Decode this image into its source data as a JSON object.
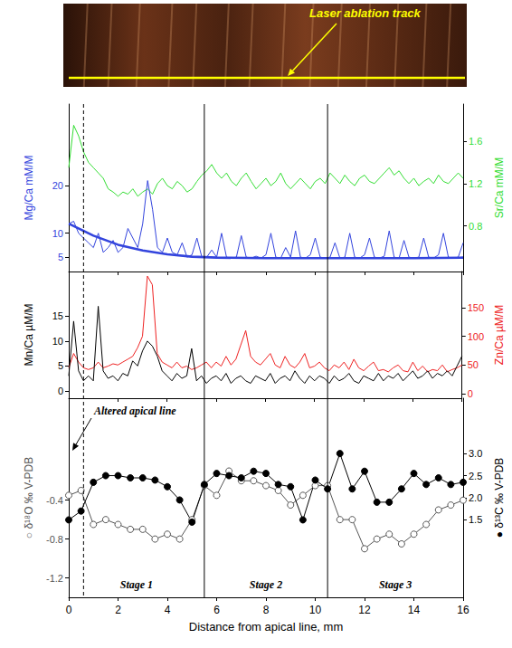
{
  "chart_data": {
    "type": "line",
    "photo_label": "Laser ablation track",
    "x_label": "Distance from apical line, mm",
    "xlim": [
      0,
      16
    ],
    "xticks": [
      0,
      2,
      4,
      6,
      8,
      10,
      12,
      14,
      16
    ],
    "grid": false,
    "stage_boundaries": [
      5.5,
      10.5
    ],
    "stage_labels": [
      "Stage 1",
      "Stage 2",
      "Stage 3"
    ],
    "altered_apical_line": 0.6,
    "annotation": "Altered apical line",
    "panels": [
      {
        "y_label": "Mg/Ca mM/M",
        "ylim": [
          2,
          37
        ],
        "yticks": [
          5,
          10,
          20
        ],
        "y2_label": "Sr/Ca mM/M",
        "y2lim": [
          0.37,
          1.95
        ],
        "y2ticks": [
          0.8,
          1.2,
          1.6
        ],
        "x": [
          0,
          0.2,
          0.4,
          0.6,
          0.8,
          1,
          1.2,
          1.4,
          1.6,
          1.8,
          2,
          2.2,
          2.4,
          2.6,
          2.8,
          3,
          3.2,
          3.4,
          3.6,
          3.8,
          4,
          4.2,
          4.4,
          4.6,
          4.8,
          5,
          5.2,
          5.4,
          5.6,
          5.8,
          6,
          6.2,
          6.4,
          6.6,
          6.8,
          7,
          7.2,
          7.4,
          7.6,
          7.8,
          8,
          8.2,
          8.4,
          8.6,
          8.8,
          9,
          9.2,
          9.4,
          9.6,
          9.8,
          10,
          10.2,
          10.4,
          10.6,
          10.8,
          11,
          11.2,
          11.4,
          11.6,
          11.8,
          12,
          12.2,
          12.4,
          12.6,
          12.8,
          13,
          13.2,
          13.4,
          13.6,
          13.8,
          14,
          14.2,
          14.4,
          14.6,
          14.8,
          15,
          15.2,
          15.4,
          15.6,
          15.8,
          16
        ],
        "series": [
          {
            "color": "#33dd33",
            "axis": "y2",
            "marker": "none",
            "line_style": "solid",
            "values": [
              1.35,
              1.75,
              1.65,
              1.5,
              1.4,
              1.35,
              1.3,
              1.25,
              1.15,
              1.12,
              1.08,
              1.12,
              1.1,
              1.15,
              1.08,
              1.12,
              1.15,
              1.1,
              1.2,
              1.25,
              1.18,
              1.15,
              1.22,
              1.18,
              1.12,
              1.15,
              1.22,
              1.28,
              1.32,
              1.38,
              1.3,
              1.25,
              1.3,
              1.22,
              1.18,
              1.25,
              1.3,
              1.22,
              1.15,
              1.2,
              1.25,
              1.18,
              1.22,
              1.3,
              1.2,
              1.15,
              1.2,
              1.25,
              1.2,
              1.15,
              1.22,
              1.25,
              1.2,
              1.3,
              1.25,
              1.2,
              1.28,
              1.22,
              1.18,
              1.25,
              1.28,
              1.22,
              1.2,
              1.25,
              1.3,
              1.35,
              1.28,
              1.32,
              1.25,
              1.2,
              1.25,
              1.18,
              1.22,
              1.25,
              1.2,
              1.28,
              1.22,
              1.2,
              1.25,
              1.3,
              1.25
            ]
          },
          {
            "color": "#3344dd",
            "axis": "y",
            "marker": "none",
            "line_style": "solid",
            "values": [
              12,
              12.5,
              10,
              9,
              8,
              7,
              10,
              6,
              7,
              8.5,
              6,
              7,
              11,
              9,
              7,
              12,
              21,
              15,
              7,
              6,
              9,
              6,
              5.5,
              8,
              5,
              5.5,
              9,
              5,
              5,
              6.5,
              5,
              10,
              5,
              4.8,
              5,
              9.5,
              5,
              4.8,
              5.2,
              4.8,
              5.5,
              10,
              5,
              4.8,
              7,
              5,
              10.5,
              5,
              4.8,
              5.5,
              9,
              5,
              4.8,
              5,
              8,
              4.8,
              5,
              10,
              5,
              4.8,
              5.5,
              9,
              5,
              4.8,
              5.2,
              10.5,
              5,
              4.8,
              8.5,
              5,
              4.8,
              5,
              9,
              5,
              4.8,
              5.5,
              10,
              5,
              4.8,
              5,
              8
            ]
          },
          {
            "color": "#3344dd",
            "axis": "y",
            "marker": "none",
            "line_style": "thick",
            "x": [
              0,
              1,
              2,
              3,
              4,
              5,
              6,
              8,
              10,
              12,
              14,
              16
            ],
            "values": [
              12,
              9.5,
              7.6,
              6.4,
              5.6,
              5.1,
              4.9,
              4.8,
              4.8,
              4.8,
              4.8,
              4.9
            ]
          }
        ]
      },
      {
        "y_label": "Mn/Ca µM/M",
        "ylim": [
          -1.5,
          24
        ],
        "yticks": [
          0,
          5,
          10,
          15
        ],
        "y2_label": "Zn/Ca µM/M",
        "y2lim": [
          -8,
          213
        ],
        "y2ticks": [
          0,
          50,
          100,
          150
        ],
        "x": [
          0,
          0.2,
          0.4,
          0.6,
          0.8,
          1,
          1.2,
          1.4,
          1.6,
          1.8,
          2,
          2.2,
          2.4,
          2.6,
          2.8,
          3,
          3.2,
          3.4,
          3.6,
          3.8,
          4,
          4.2,
          4.4,
          4.6,
          4.8,
          5,
          5.2,
          5.4,
          5.6,
          5.8,
          6,
          6.2,
          6.4,
          6.6,
          6.8,
          7,
          7.2,
          7.4,
          7.6,
          7.8,
          8,
          8.2,
          8.4,
          8.6,
          8.8,
          9,
          9.2,
          9.4,
          9.6,
          9.8,
          10,
          10.2,
          10.4,
          10.6,
          10.8,
          11,
          11.2,
          11.4,
          11.6,
          11.8,
          12,
          12.2,
          12.4,
          12.6,
          12.8,
          13,
          13.2,
          13.4,
          13.6,
          13.8,
          14,
          14.2,
          14.4,
          14.6,
          14.8,
          15,
          15.2,
          15.4,
          15.6,
          15.8,
          16
        ],
        "series": [
          {
            "color": "#ee2222",
            "axis": "y2",
            "marker": "none",
            "line_style": "solid",
            "values": [
              45,
              70,
              55,
              45,
              42,
              45,
              55,
              45,
              48,
              52,
              50,
              55,
              60,
              65,
              80,
              100,
              205,
              190,
              70,
              55,
              50,
              45,
              55,
              45,
              48,
              42,
              45,
              50,
              55,
              45,
              55,
              48,
              65,
              50,
              60,
              85,
              110,
              65,
              55,
              50,
              60,
              70,
              50,
              45,
              65,
              50,
              45,
              55,
              70,
              45,
              48,
              55,
              45,
              40,
              50,
              45,
              55,
              42,
              60,
              45,
              40,
              48,
              55,
              40,
              42,
              38,
              45,
              50,
              40,
              38,
              55,
              40,
              48,
              38,
              42,
              40,
              50,
              38,
              42,
              45,
              50
            ]
          },
          {
            "color": "#000000",
            "axis": "y",
            "marker": "none",
            "line_style": "solid",
            "values": [
              3,
              14,
              4,
              2,
              3,
              2,
              17,
              4,
              2.5,
              3,
              2,
              3.5,
              3,
              6,
              5,
              8,
              10,
              9,
              7,
              4,
              3,
              2,
              3.5,
              2.5,
              3,
              8.5,
              2,
              3,
              1.5,
              2.5,
              3,
              2,
              3.5,
              1.5,
              2.5,
              3,
              2,
              1.5,
              3,
              2.5,
              2,
              3.5,
              1.5,
              2.5,
              3,
              2,
              4,
              2.5,
              1.5,
              3,
              2,
              3,
              2.5,
              1.5,
              3,
              2,
              2.5,
              3.5,
              2,
              1.5,
              3,
              2.5,
              2,
              3.5,
              2,
              3,
              2.5,
              3.5,
              2,
              3,
              4,
              2.5,
              3,
              4,
              2.5,
              3.5,
              3,
              4,
              3,
              5,
              7
            ]
          }
        ]
      },
      {
        "y_label": "○ δ¹⁸O ‰ V-PDB",
        "ylim": [
          -1.4,
          0.65
        ],
        "yticks": [
          -1.2,
          -0.8,
          -0.4
        ],
        "y2_label": "● δ¹³C ‰ V-PDB",
        "y2lim": [
          -0.25,
          4.25
        ],
        "y2ticks": [
          1.5,
          {
            "value": 2,
            "label": "2.0"
          },
          2.5,
          {
            "value": 3,
            "label": "3.0"
          }
        ],
        "x": [
          0,
          0.5,
          1,
          1.5,
          2,
          2.5,
          3,
          3.5,
          4,
          4.5,
          5,
          5.5,
          6,
          6.5,
          7,
          7.5,
          8,
          8.5,
          9,
          9.5,
          10,
          10.5,
          11,
          11.5,
          12,
          12.5,
          13,
          13.5,
          14,
          14.5,
          15,
          15.5,
          16
        ],
        "series": [
          {
            "color": "#555555",
            "axis": "y",
            "marker": "open_circle",
            "line_style": "solid",
            "values": [
              -0.35,
              -0.3,
              -0.65,
              -0.6,
              -0.65,
              -0.7,
              -0.7,
              -0.8,
              -0.75,
              -0.8,
              -0.6,
              -0.25,
              -0.35,
              -0.1,
              -0.2,
              -0.2,
              -0.25,
              -0.3,
              -0.45,
              -0.35,
              -0.25,
              -0.25,
              -0.6,
              -0.6,
              -0.9,
              -0.8,
              -0.75,
              -0.85,
              -0.75,
              -0.65,
              -0.5,
              -0.45,
              -0.4
            ]
          },
          {
            "color": "#000000",
            "axis": "y2",
            "marker": "circle",
            "line_style": "solid",
            "values": [
              1.5,
              1.7,
              2.35,
              2.5,
              2.5,
              2.45,
              2.45,
              2.4,
              2.25,
              1.95,
              1.45,
              2.3,
              2.55,
              2.5,
              2.45,
              2.6,
              2.55,
              2.3,
              2.25,
              1.5,
              2.4,
              2.2,
              3.0,
              2.2,
              2.6,
              1.9,
              1.9,
              2.2,
              2.55,
              2.3,
              2.45,
              2.3,
              2.35
            ]
          }
        ]
      }
    ]
  }
}
